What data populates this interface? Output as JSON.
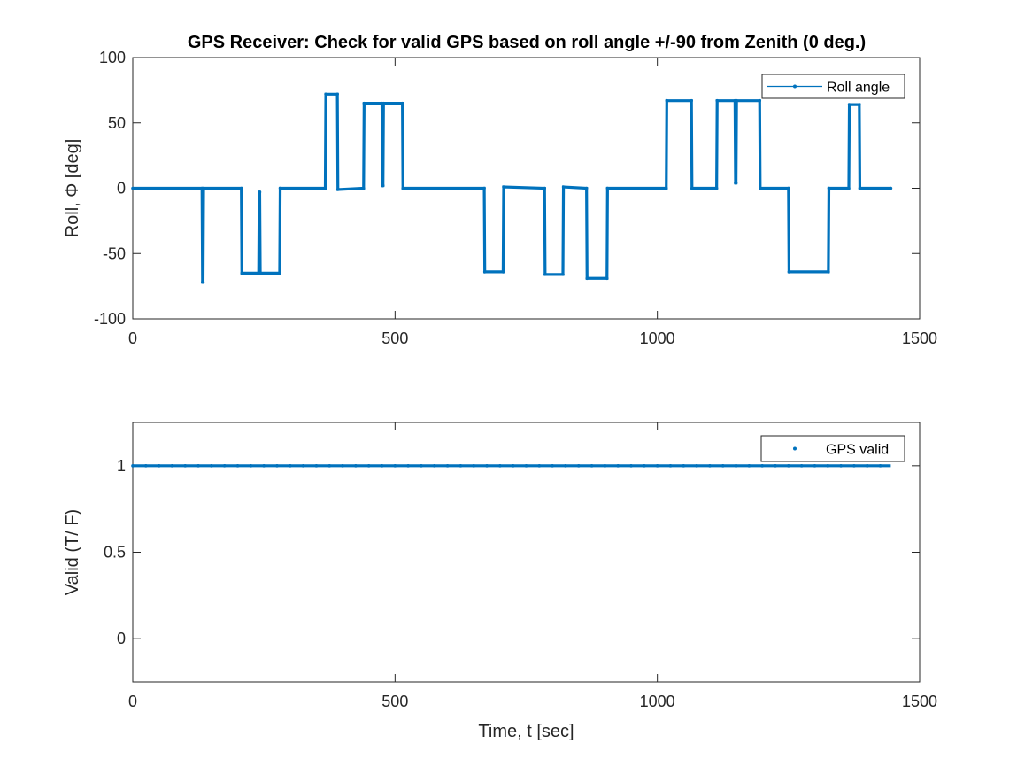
{
  "figure": {
    "title": "GPS Receiver: Check for valid GPS based on roll angle +/-90 from Zenith (0 deg.)",
    "background": "#ffffff",
    "axis_color": "#262626",
    "series_color": "#0072bd"
  },
  "chart_data": [
    {
      "type": "line",
      "title": "GPS Receiver: Check for valid GPS based on roll angle +/-90 from Zenith (0 deg.)",
      "xlabel": "",
      "ylabel": "Roll, Φ [deg]",
      "xlim": [
        0,
        1500
      ],
      "ylim": [
        -100,
        100
      ],
      "xticks": [
        0,
        500,
        1000,
        1500
      ],
      "yticks": [
        -100,
        -50,
        0,
        50,
        100
      ],
      "xtick_labels": [
        "0",
        "500",
        "1000",
        "1500"
      ],
      "ytick_labels": [
        "-100",
        "-50",
        "0",
        "50",
        "100"
      ],
      "grid": false,
      "legend": {
        "entries": [
          "Roll angle"
        ],
        "location": "top-right"
      },
      "series": [
        {
          "name": "Roll angle",
          "color": "#0072bd",
          "marker": "dot",
          "x": [
            0,
            132,
            133,
            134,
            135,
            207,
            208,
            240,
            241,
            242,
            243,
            280,
            281,
            367,
            368,
            390,
            391,
            440,
            441,
            475,
            476,
            477,
            478,
            514,
            515,
            670,
            671,
            706,
            707,
            785,
            786,
            820,
            821,
            865,
            866,
            904,
            905,
            1017,
            1018,
            1065,
            1066,
            1113,
            1114,
            1148,
            1149,
            1150,
            1151,
            1195,
            1196,
            1250,
            1251,
            1326,
            1327,
            1365,
            1366,
            1385,
            1386,
            1445
          ],
          "y": [
            0,
            0,
            -72,
            -72,
            0,
            0,
            -65,
            -65,
            -3,
            -3,
            -65,
            -65,
            0,
            0,
            72,
            72,
            -1,
            0,
            65,
            65,
            2,
            2,
            65,
            65,
            0,
            0,
            -64,
            -64,
            1,
            0,
            -66,
            -66,
            1,
            0,
            -69,
            -69,
            0,
            0,
            67,
            67,
            0,
            0,
            67,
            67,
            4,
            4,
            67,
            67,
            0,
            0,
            -64,
            -64,
            0,
            0,
            64,
            64,
            0,
            0
          ]
        }
      ]
    },
    {
      "type": "scatter",
      "title": "",
      "xlabel": "Time, t [sec]",
      "ylabel": "Valid (T/ F)",
      "xlim": [
        0,
        1500
      ],
      "ylim": [
        -0.25,
        1.25
      ],
      "xticks": [
        0,
        500,
        1000,
        1500
      ],
      "yticks": [
        0,
        0.5,
        1
      ],
      "xtick_labels": [
        "0",
        "500",
        "1000",
        "1500"
      ],
      "ytick_labels": [
        "0",
        "0.5",
        "1"
      ],
      "grid": false,
      "legend": {
        "entries": [
          "GPS valid"
        ],
        "location": "top-right"
      },
      "series": [
        {
          "name": "GPS valid",
          "color": "#0072bd",
          "marker": "dot",
          "x_range": [
            0,
            1445
          ],
          "y_constant": 1
        }
      ]
    }
  ]
}
